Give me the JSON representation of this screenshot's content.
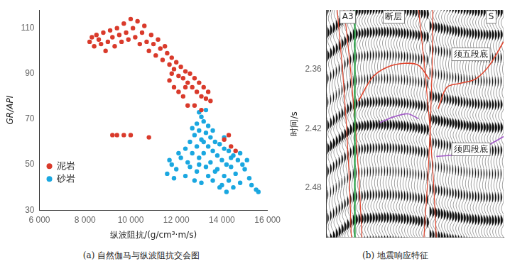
{
  "chart_data": [
    {
      "type": "scatter",
      "title": "(a) 自然伽马与纵波阻抗交会图",
      "x_label": "纵波阻抗/(g/cm³·m/s)",
      "y_label": "GR/API",
      "xlim": [
        6000,
        16000
      ],
      "xticks": [
        {
          "value": 6000,
          "label": "6 000"
        },
        {
          "value": 8000,
          "label": "8 000"
        },
        {
          "value": 10000,
          "label": "10 000"
        },
        {
          "value": 12000,
          "label": "12 000"
        },
        {
          "value": 14000,
          "label": "14 000"
        },
        {
          "value": 16000,
          "label": "16 000"
        }
      ],
      "ylim": [
        30,
        118
      ],
      "yticks": [
        30,
        50,
        70,
        90,
        110
      ],
      "grid": false,
      "legend": "lower left",
      "series": [
        {
          "name": "泥岩",
          "color": "#d93a2b",
          "marker": "circle",
          "x": [
            8200,
            8300,
            8400,
            8500,
            8600,
            8700,
            8800,
            8900,
            9000,
            9100,
            9200,
            9300,
            9400,
            9500,
            9600,
            9700,
            9800,
            9900,
            10000,
            10100,
            10200,
            10300,
            10400,
            10500,
            10600,
            10700,
            10800,
            10900,
            11000,
            11100,
            11200,
            11300,
            11400,
            11500,
            11600,
            11700,
            11800,
            11900,
            12000,
            12100,
            12200,
            12300,
            12400,
            12500,
            12600,
            12700,
            12800,
            12900,
            13000,
            13100,
            13200,
            13300,
            13400,
            13500,
            11700,
            11900,
            12100,
            12300,
            12500,
            12800,
            13100,
            12400,
            11800,
            9200,
            9400,
            9700,
            10000,
            10800,
            14300,
            14400,
            14600,
            14100
          ],
          "values": [
            104,
            106,
            102,
            107,
            105,
            103,
            108,
            100,
            104,
            109,
            106,
            102,
            110,
            107,
            104,
            112,
            108,
            105,
            114,
            110,
            106,
            113,
            103,
            108,
            111,
            104,
            100,
            107,
            103,
            98,
            105,
            101,
            96,
            102,
            99,
            94,
            97,
            92,
            95,
            89,
            93,
            88,
            91,
            86,
            90,
            84,
            88,
            82,
            86,
            80,
            84,
            79,
            82,
            78,
            87,
            84,
            82,
            80,
            76,
            76,
            74,
            84,
            90,
            63,
            63,
            63,
            63,
            62,
            63,
            58,
            56,
            61
          ]
        },
        {
          "name": "砂岩",
          "color": "#1aa7e0",
          "marker": "circle",
          "x": [
            13000,
            13100,
            13300,
            13200,
            12900,
            13400,
            13000,
            13300,
            12800,
            13500,
            13100,
            13700,
            12600,
            13900,
            12900,
            13400,
            14100,
            12400,
            13600,
            14300,
            12700,
            13200,
            13800,
            14500,
            12200,
            13000,
            14000,
            14700,
            12500,
            13500,
            14200,
            14900,
            11800,
            13300,
            14400,
            15000,
            12000,
            12900,
            13700,
            14600,
            11600,
            12400,
            13400,
            14100,
            15200,
            11900,
            12800,
            13600,
            14300,
            14800,
            13100,
            14000,
            15300,
            14500,
            15500,
            15600,
            13900,
            14200,
            12100,
            11700,
            13200,
            13600,
            12700,
            14100,
            14800,
            15100,
            13800,
            12600,
            13000,
            14400
          ],
          "values": [
            73,
            71,
            74,
            69,
            68,
            67,
            65,
            64,
            63,
            62,
            61,
            60,
            60,
            59,
            58,
            58,
            57,
            57,
            56,
            56,
            55,
            55,
            54,
            54,
            53,
            53,
            52,
            52,
            51,
            51,
            50,
            50,
            50,
            49,
            49,
            48,
            48,
            47,
            47,
            46,
            46,
            45,
            45,
            45,
            44,
            44,
            43,
            43,
            43,
            42,
            42,
            41,
            41,
            40,
            39,
            38,
            40,
            38,
            55,
            52,
            60,
            65,
            66,
            62,
            55,
            52,
            48,
            49,
            50,
            53
          ]
        }
      ]
    },
    {
      "type": "line",
      "title": "(b) 地震响应特征",
      "y_label": "时间/s",
      "xlim": [
        0,
        100
      ],
      "ylim": [
        2.3,
        2.53
      ],
      "yticks": [
        2.36,
        2.42,
        2.48
      ],
      "grid": false,
      "tick_labels": "y",
      "annotations": [
        "A3",
        "S",
        "断层"
      ],
      "series": [
        {
          "name": "须五段底",
          "color": "#e0452e",
          "line_style": "solid",
          "x": [
            18,
            26,
            34,
            44,
            52,
            58,
            61,
            63,
            68,
            76,
            84,
            92,
            100
          ],
          "values": [
            2.392,
            2.368,
            2.358,
            2.354,
            2.356,
            2.37,
            null,
            2.4,
            2.378,
            2.374,
            2.37,
            2.356,
            2.332
          ]
        },
        {
          "name": "须四段底",
          "color": "#a35bc8",
          "line_style": "solid",
          "x": [
            30,
            38,
            46,
            52,
            56,
            62,
            70,
            80,
            90,
            100
          ],
          "values": [
            2.414,
            2.408,
            2.405,
            2.41,
            null,
            2.448,
            2.447,
            2.446,
            2.438,
            2.428
          ]
        }
      ]
    }
  ]
}
